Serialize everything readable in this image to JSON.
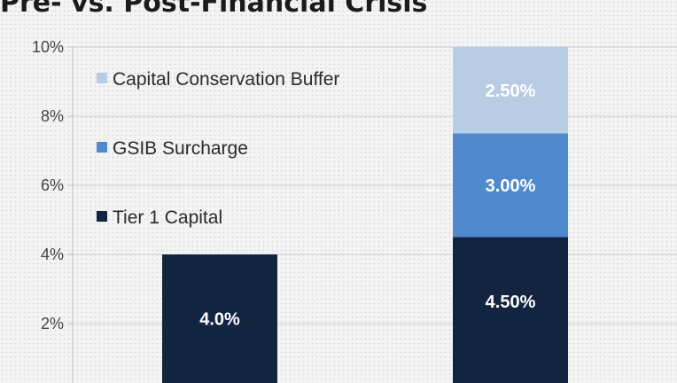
{
  "chart_data": {
    "type": "bar",
    "stacked": true,
    "title": "Pre- vs. Post-Financial Crisis",
    "xlabel": "",
    "ylabel": "",
    "categories": [
      "",
      ""
    ],
    "ylim": [
      0,
      10
    ],
    "yticks": [
      {
        "value": 2,
        "label": "2%"
      },
      {
        "value": 4,
        "label": "4%"
      },
      {
        "value": 6,
        "label": "6%"
      },
      {
        "value": 8,
        "label": "8%"
      },
      {
        "value": 10,
        "label": "10%"
      }
    ],
    "grid": true,
    "legend_position": "top-left",
    "series": [
      {
        "name": "Tier 1 Capital",
        "color": "#12243f",
        "values": [
          4.0,
          4.5
        ],
        "labels": [
          "4.0%",
          "4.50%"
        ]
      },
      {
        "name": "GSIB Surcharge",
        "color": "#5189cf",
        "values": [
          0,
          3.0
        ],
        "labels": [
          "",
          "3.00%"
        ]
      },
      {
        "name": "Capital Conservation Buffer",
        "color": "#b8cce4",
        "values": [
          0,
          2.5
        ],
        "labels": [
          "",
          "2.50%"
        ]
      }
    ]
  }
}
